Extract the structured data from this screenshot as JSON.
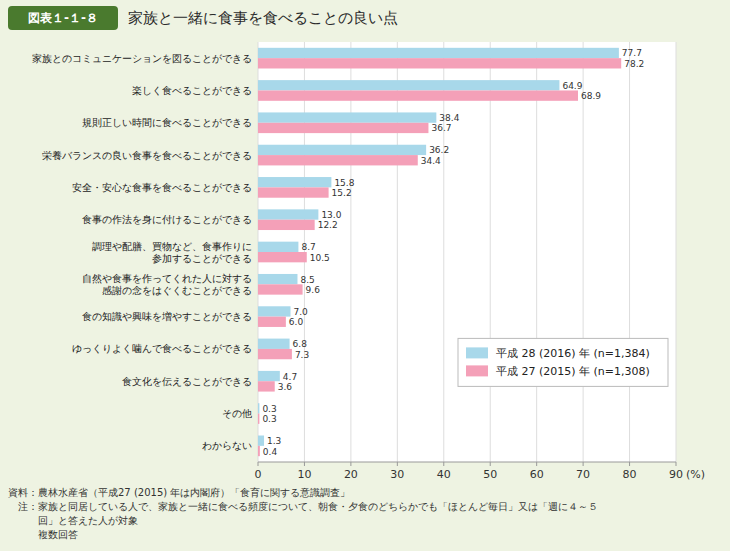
{
  "chart_data": {
    "type": "bar",
    "orientation": "horizontal",
    "title": "家族と一緒に食事を食べることの良い点",
    "subtitle": "図表１-１-８",
    "categories": [
      "家族とのコミュニケーションを図ることができる",
      "楽しく食べることができる",
      "規則正しい時間に食べることができる",
      "栄養バランスの良い食事を食べることができる",
      "安全・安心な食事を食べることができる",
      "食事の作法を身に付けることができる",
      "調理や配膳、買物など、食事作りに\n参加することができる",
      "自然や食事を作ってくれた人に対する\n感謝の念をはぐくむことができる",
      "食の知識や興味を増やすことができる",
      "ゆっくりよく噛んで食べることができる",
      "食文化を伝えることができる",
      "その他",
      "わからない"
    ],
    "series": [
      {
        "name": "平成 28 (2016) 年 (n=1,384)",
        "color": "#a8d8ea",
        "values": [
          77.7,
          64.9,
          38.4,
          36.2,
          15.8,
          13.0,
          8.7,
          8.5,
          7.0,
          6.8,
          4.7,
          0.3,
          1.3
        ],
        "value_labels": [
          "77.7",
          "64.9",
          "38.4",
          "36.2",
          "15.8",
          "13.0",
          "8.7",
          "8.5",
          "7.0",
          "6.8",
          "4.7",
          "0.3",
          "1.3"
        ]
      },
      {
        "name": "平成 27 (2015) 年 (n=1,308)",
        "color": "#f4a0b8",
        "values": [
          78.2,
          68.9,
          36.7,
          34.4,
          15.2,
          12.2,
          10.5,
          9.6,
          6.0,
          7.3,
          3.6,
          0.3,
          0.4
        ],
        "value_labels": [
          "78.2",
          "68.9",
          "36.7",
          "34.4",
          "15.2",
          "12.2",
          "10.5",
          "9.6",
          "6.0",
          "7.3",
          "3.6",
          "0.3",
          "0.4"
        ]
      }
    ],
    "xlabel": "(%)",
    "xlim": [
      0,
      90
    ],
    "xticks": [
      0,
      10,
      20,
      30,
      40,
      50,
      60,
      70,
      80,
      90
    ],
    "grid": true,
    "legend": "lower right",
    "data_labels": true,
    "annotations": [
      "資料：農林水産省（平成27 (2015) 年は内閣府）「食育に関する意識調査」",
      "　注：家族と同居している人で、家族と一緒に食べる頻度について、朝食・夕食のどちらかでも「ほとんど毎日」又は「週に４～５",
      "　　　回」と答えた人が対象",
      "　　　複数回答"
    ]
  }
}
